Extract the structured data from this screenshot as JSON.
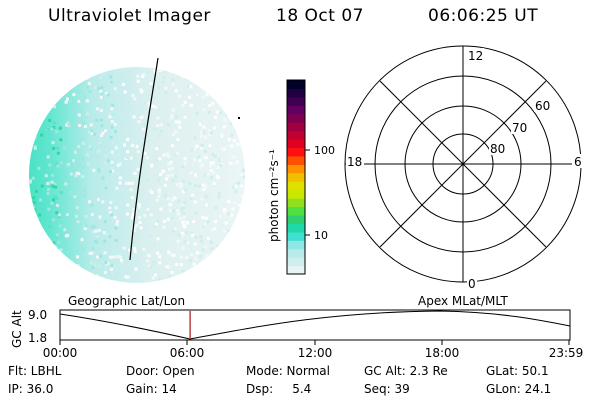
{
  "header": {
    "title": "Ultraviolet Imager",
    "date": "18 Oct 07",
    "time": "06:06:25 UT"
  },
  "colorbar": {
    "unit_label": "photon cm⁻²s⁻¹",
    "ticks": [
      "100",
      "10"
    ],
    "colors": [
      "#e8f4f4",
      "#d0eeee",
      "#b8eaea",
      "#90e6e6",
      "#40e0d0",
      "#20d8a8",
      "#30d070",
      "#50e040",
      "#90e020",
      "#c8e800",
      "#e0e000",
      "#f0c000",
      "#ff9000",
      "#ff5000",
      "#ff1010",
      "#e00020",
      "#c00030",
      "#a00040",
      "#800050",
      "#600060",
      "#400050",
      "#200040",
      "#000028"
    ]
  },
  "polar_grid": {
    "mlt_labels": {
      "top": "12",
      "left": "18",
      "right": "6",
      "bottom": "0"
    },
    "lat_labels": [
      "60",
      "70",
      "80"
    ]
  },
  "timeline": {
    "left_title": "Geographic Lat/Lon",
    "right_title": "Apex MLat/MLT",
    "axis_label": "GC Alt",
    "y_ticks": [
      "9.0",
      "1.8"
    ],
    "x_ticks": [
      "00:00",
      "06:00",
      "12:00",
      "18:00",
      "23:59"
    ],
    "current_fraction": 0.255,
    "marker_color": "#c04040"
  },
  "info": {
    "flt": "Flt: LBHL",
    "door": "Door: Open",
    "mode": "Mode: Normal",
    "gc_alt": "GC Alt: 2.3 Re",
    "glat": "GLat: 50.1",
    "ip": "IP: 36.0",
    "gain": "Gain: 14",
    "dsp": "Dsp:     5.4",
    "seq": "Seq: 39",
    "glon": "GLon: 24.1"
  }
}
